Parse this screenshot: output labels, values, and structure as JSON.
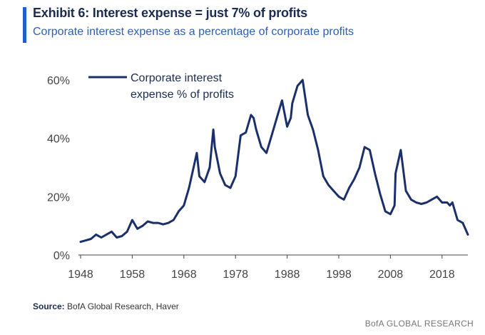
{
  "header": {
    "title": "Exhibit 6: Interest expense = just 7% of profits",
    "subtitle": "Corporate interest expense as a percentage of corporate profits",
    "accent_color": "#1f5fd0"
  },
  "footer": {
    "source_label": "Source:",
    "source_text": "BofA Global Research, Haver",
    "brand": "BofA GLOBAL RESEARCH"
  },
  "chart_data": {
    "type": "line",
    "title": "Exhibit 6: Interest expense = just 7% of profits",
    "subtitle": "Corporate interest expense as a percentage of corporate profits",
    "xlabel": "",
    "ylabel": "",
    "xlim": [
      1948,
      2023
    ],
    "ylim": [
      0,
      60
    ],
    "x_ticks": [
      1948,
      1958,
      1968,
      1978,
      1988,
      1998,
      2008,
      2018
    ],
    "x_tick_labels": [
      "1948",
      "1958",
      "1968",
      "1978",
      "1988",
      "1998",
      "2008",
      "2018"
    ],
    "y_ticks": [
      0,
      20,
      40,
      60
    ],
    "y_tick_labels": [
      "0%",
      "20%",
      "40%",
      "60%"
    ],
    "grid": false,
    "legend": {
      "position": "top-left",
      "entries": [
        "Corporate interest expense % of profits"
      ]
    },
    "series": [
      {
        "name": "Corporate interest expense % of profits",
        "color": "#1a2f6b",
        "x": [
          1948,
          1949,
          1950,
          1951,
          1952,
          1953,
          1954,
          1955,
          1956,
          1957,
          1958,
          1959,
          1960,
          1961,
          1962,
          1963,
          1964,
          1965,
          1966,
          1967,
          1968,
          1969,
          1970,
          1970.5,
          1971,
          1972,
          1973,
          1973.7,
          1974,
          1975,
          1976,
          1977,
          1978,
          1979,
          1980,
          1981,
          1981.5,
          1982,
          1983,
          1984,
          1985,
          1986,
          1987,
          1988,
          1988.7,
          1989,
          1990,
          1991,
          1992,
          1993,
          1994,
          1995,
          1996,
          1997,
          1998,
          1999,
          2000,
          2001,
          2002,
          2003,
          2004,
          2005,
          2006,
          2007,
          2008,
          2008.8,
          2009,
          2010,
          2011,
          2012,
          2013,
          2014,
          2015,
          2016,
          2017,
          2018,
          2019,
          2019.5,
          2020,
          2021,
          2022,
          2023
        ],
        "values": [
          4.5,
          5,
          5.5,
          7,
          6,
          7,
          8,
          6,
          6.5,
          8,
          12,
          9,
          10,
          11.5,
          11,
          11,
          10.5,
          11,
          12,
          15,
          17,
          23,
          31,
          35,
          27,
          25,
          30,
          43,
          37,
          28,
          24,
          23,
          27,
          41,
          42,
          48,
          47,
          43,
          37,
          35,
          41,
          47,
          53,
          44,
          47,
          52,
          58,
          60,
          48,
          43,
          36,
          27,
          24,
          22,
          20,
          19,
          23,
          26,
          30,
          37,
          36,
          28,
          21,
          15,
          14,
          17,
          28,
          36,
          22,
          19,
          18,
          17.5,
          18,
          19,
          20,
          18,
          18,
          17,
          18,
          12,
          11,
          7
        ]
      }
    ]
  }
}
